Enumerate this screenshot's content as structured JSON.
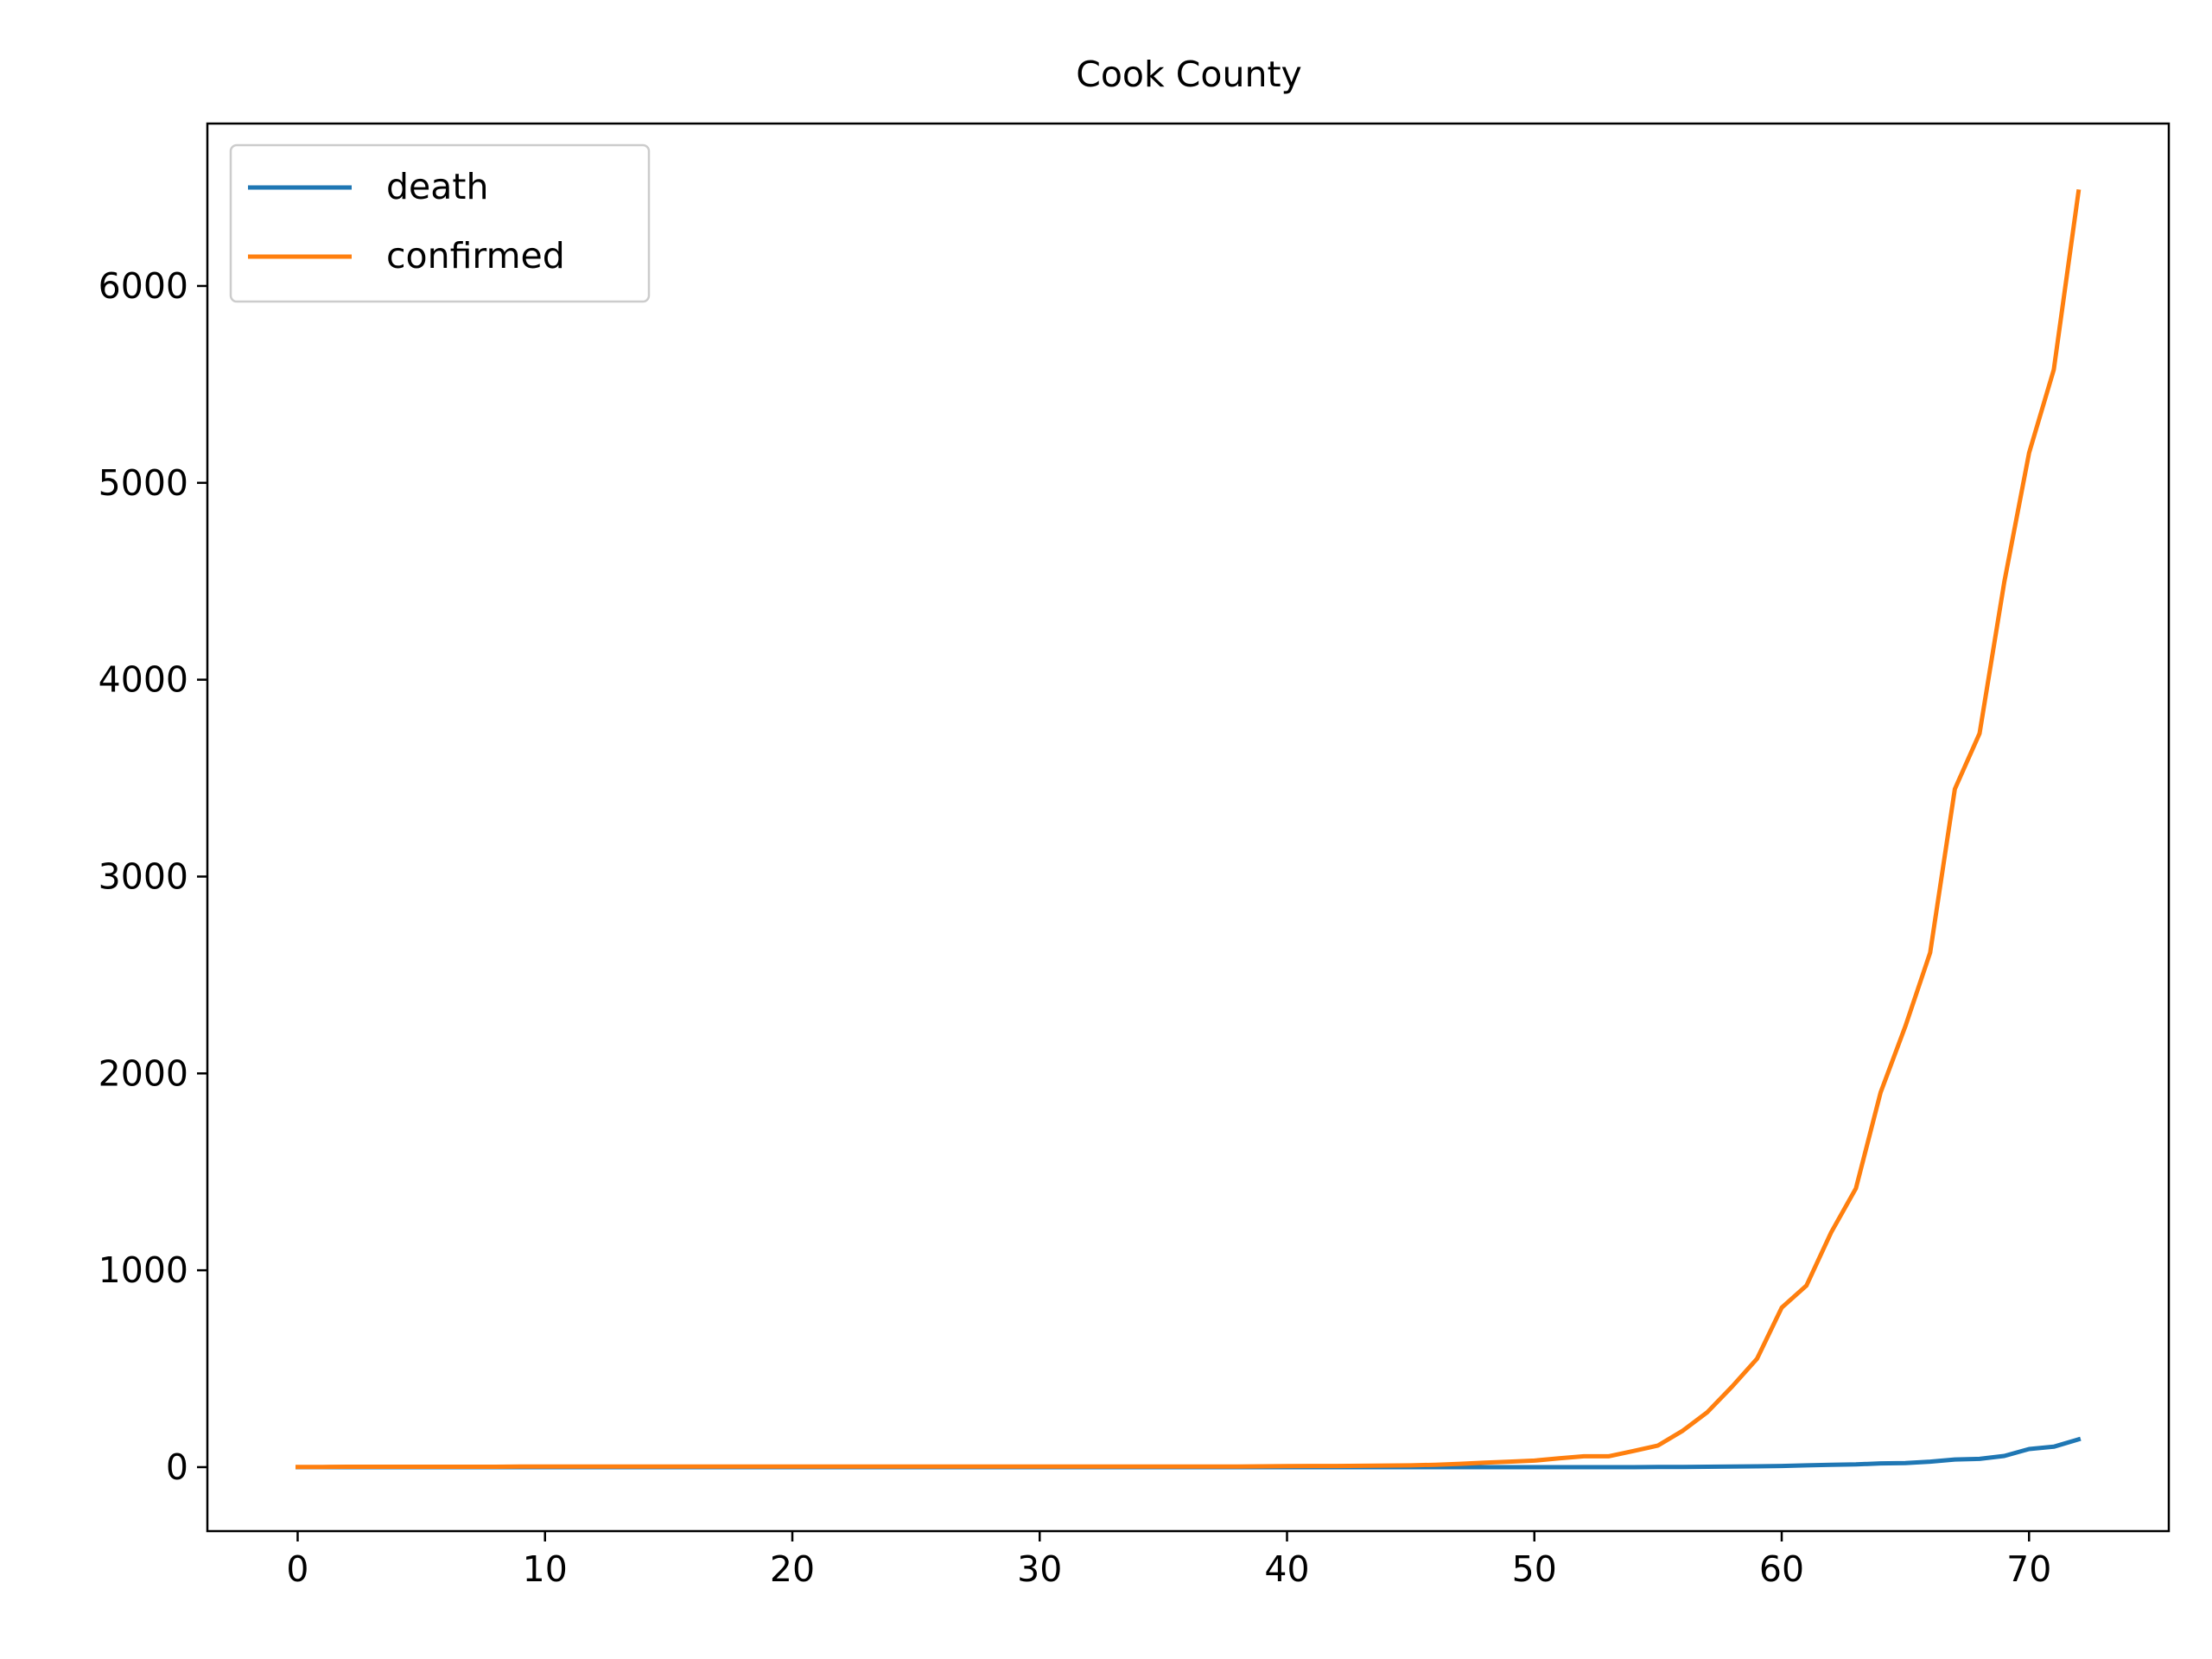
{
  "chart_data": {
    "type": "line",
    "title": "Cook County",
    "xlabel": "",
    "ylabel": "",
    "xlim": [
      -3.65,
      75.65
    ],
    "ylim": [
      -325,
      6825
    ],
    "xticks": [
      0,
      10,
      20,
      30,
      40,
      50,
      60,
      70
    ],
    "yticks": [
      0,
      1000,
      2000,
      3000,
      4000,
      5000,
      6000
    ],
    "grid": false,
    "legend_position": "top-left",
    "x": [
      0,
      1,
      2,
      3,
      4,
      5,
      6,
      7,
      8,
      9,
      10,
      11,
      12,
      13,
      14,
      15,
      16,
      17,
      18,
      19,
      20,
      21,
      22,
      23,
      24,
      25,
      26,
      27,
      28,
      29,
      30,
      31,
      32,
      33,
      34,
      35,
      36,
      37,
      38,
      39,
      40,
      41,
      42,
      43,
      44,
      45,
      46,
      47,
      48,
      49,
      50,
      51,
      52,
      53,
      54,
      55,
      56,
      57,
      58,
      59,
      60,
      61,
      62,
      63,
      64,
      65,
      66,
      67,
      68,
      69,
      70,
      71,
      72
    ],
    "series": [
      {
        "name": "death",
        "color": "#1f77b4",
        "values": [
          0,
          0,
          0,
          0,
          0,
          0,
          0,
          0,
          0,
          0,
          0,
          0,
          0,
          0,
          0,
          0,
          0,
          0,
          0,
          0,
          0,
          0,
          0,
          0,
          0,
          0,
          0,
          0,
          0,
          0,
          0,
          0,
          0,
          0,
          0,
          0,
          0,
          0,
          0,
          0,
          0,
          0,
          0,
          0,
          0,
          0,
          0,
          0,
          0,
          0,
          0,
          0,
          0,
          0,
          0,
          1,
          1,
          2,
          3,
          4,
          6,
          9,
          12,
          14,
          19,
          21,
          28,
          39,
          42,
          57,
          92,
          104,
          141
        ]
      },
      {
        "name": "confirmed",
        "color": "#ff7f0e",
        "values": [
          1,
          1,
          2,
          2,
          2,
          2,
          2,
          2,
          2,
          3,
          3,
          3,
          3,
          3,
          3,
          3,
          3,
          3,
          3,
          3,
          3,
          3,
          3,
          3,
          3,
          3,
          3,
          3,
          3,
          3,
          3,
          3,
          3,
          3,
          3,
          3,
          3,
          3,
          3,
          4,
          5,
          6,
          6,
          7,
          8,
          9,
          12,
          17,
          23,
          28,
          33,
          45,
          55,
          55,
          82,
          110,
          185,
          280,
          410,
          550,
          810,
          922,
          1193,
          1416,
          1904,
          2239,
          2613,
          3445,
          3727,
          4496,
          5152,
          5575,
          6479
        ]
      }
    ]
  }
}
